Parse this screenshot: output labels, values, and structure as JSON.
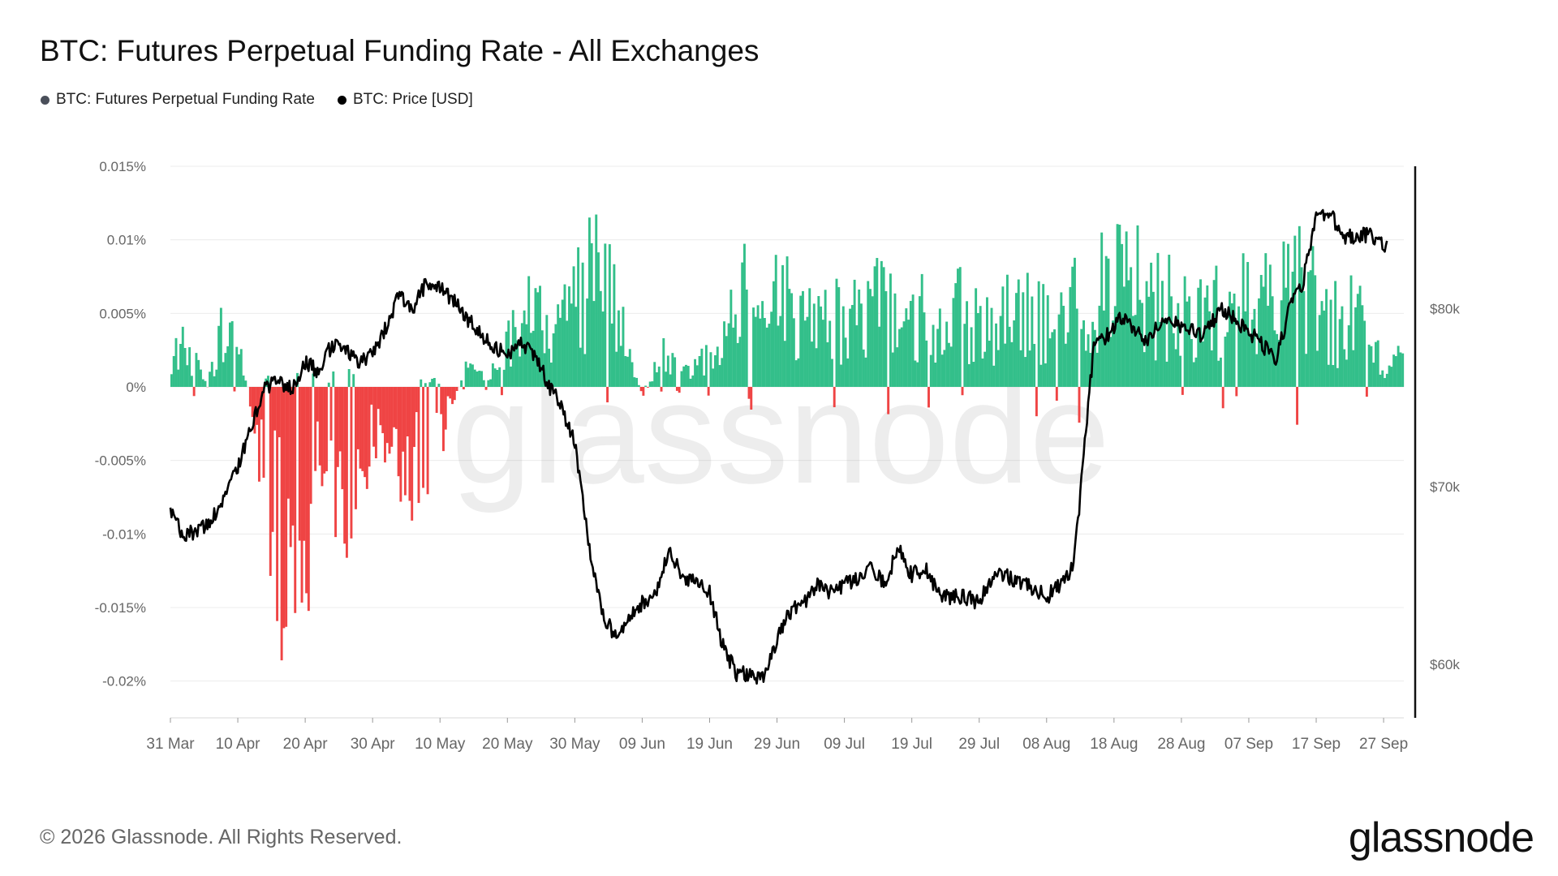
{
  "header": {
    "title": "BTC: Futures Perpetual Funding Rate - All Exchanges"
  },
  "legend": [
    {
      "label": "BTC: Futures Perpetual Funding Rate",
      "color": "#4a4f5a"
    },
    {
      "label": "BTC: Price [USD]",
      "color": "#000000"
    }
  ],
  "footer": {
    "copyright": "© 2026 Glassnode. All Rights Reserved.",
    "logo": "glassnode"
  },
  "watermark": "glassnode",
  "colors": {
    "positive": "#33bf8a",
    "negative": "#ef4444",
    "price": "#000000",
    "grid": "#ececec",
    "axis": "#111111"
  },
  "chart_data": {
    "type": "bar",
    "title": "BTC: Futures Perpetual Funding Rate - All Exchanges",
    "x_tick_labels": [
      "31 Mar",
      "10 Apr",
      "20 Apr",
      "30 Apr",
      "10 May",
      "20 May",
      "30 May",
      "09 Jun",
      "19 Jun",
      "29 Jun",
      "09 Jul",
      "19 Jul",
      "29 Jul",
      "08 Aug",
      "18 Aug",
      "28 Aug",
      "07 Sep",
      "17 Sep",
      "27 Sep"
    ],
    "x_range": [
      "31 Mar",
      "30 Sep"
    ],
    "y_left": {
      "ticks": [
        0.015,
        0.01,
        0.005,
        0,
        -0.005,
        -0.01,
        -0.015,
        -0.02
      ],
      "tick_labels": [
        "0.015%",
        "0.01%",
        "0.005%",
        "0%",
        "-0.005%",
        "-0.01%",
        "-0.015%",
        "-0.02%"
      ],
      "range": [
        -0.0225,
        0.015
      ],
      "unit": "%"
    },
    "y_right": {
      "ticks": [
        80000,
        70000,
        60000
      ],
      "tick_labels": [
        "$80k",
        "$70k",
        "$60k"
      ],
      "range": [
        57000,
        88000
      ]
    },
    "grid": true,
    "legend_position": "top-left",
    "series": [
      {
        "name": "BTC: Futures Perpetual Funding Rate",
        "type": "bar",
        "axis": "left",
        "keypoints": [
          [
            0,
            0.002
          ],
          [
            2,
            0.004
          ],
          [
            5,
            0.001
          ],
          [
            8,
            0.005
          ],
          [
            11,
            0.001
          ],
          [
            14,
            -0.008
          ],
          [
            17,
            -0.016
          ],
          [
            20,
            -0.012
          ],
          [
            23,
            -0.006
          ],
          [
            26,
            -0.009
          ],
          [
            30,
            -0.004
          ],
          [
            34,
            -0.006
          ],
          [
            37,
            -0.007
          ],
          [
            40,
            -0.004
          ],
          [
            44,
            0.002
          ],
          [
            47,
            0.0005
          ],
          [
            50,
            0.004
          ],
          [
            54,
            0.006
          ],
          [
            58,
            0.005
          ],
          [
            61,
            0.008
          ],
          [
            64,
            0.009
          ],
          [
            67,
            0.004
          ],
          [
            70,
            -0.001
          ],
          [
            73,
            0.003
          ],
          [
            76,
            0.001
          ],
          [
            79,
            0.002
          ],
          [
            82,
            0.004
          ],
          [
            85,
            0.007
          ],
          [
            88,
            0.007
          ],
          [
            92,
            0.007
          ],
          [
            95,
            0.006
          ],
          [
            98,
            0.006
          ],
          [
            102,
            0.006
          ],
          [
            106,
            0.007
          ],
          [
            109,
            0.004
          ],
          [
            112,
            0.006
          ],
          [
            115,
            0.007
          ],
          [
            118,
            0.006
          ],
          [
            122,
            0.005
          ],
          [
            126,
            0.006
          ],
          [
            130,
            0.006
          ],
          [
            134,
            0.007
          ],
          [
            137,
            0.007
          ],
          [
            140,
            0.01
          ],
          [
            143,
            0.008
          ],
          [
            146,
            0.007
          ],
          [
            150,
            0.006
          ],
          [
            153,
            0.006
          ],
          [
            157,
            0.006
          ],
          [
            160,
            0.007
          ],
          [
            163,
            0.007
          ],
          [
            167,
            0.008
          ],
          [
            170,
            0.007
          ],
          [
            173,
            0.005
          ],
          [
            176,
            0.006
          ],
          [
            178,
            0.004
          ],
          [
            180,
            0.001
          ],
          [
            182,
            0.002
          ]
        ]
      },
      {
        "name": "BTC: Price [USD]",
        "type": "line",
        "axis": "right",
        "keypoints": [
          [
            0,
            68500
          ],
          [
            2,
            67200
          ],
          [
            4,
            67500
          ],
          [
            6,
            68000
          ],
          [
            8,
            69500
          ],
          [
            10,
            71000
          ],
          [
            12,
            73500
          ],
          [
            14,
            75500
          ],
          [
            16,
            76000
          ],
          [
            18,
            75500
          ],
          [
            20,
            77000
          ],
          [
            22,
            76500
          ],
          [
            24,
            78000
          ],
          [
            26,
            77800
          ],
          [
            28,
            76800
          ],
          [
            30,
            77500
          ],
          [
            32,
            79000
          ],
          [
            34,
            80800
          ],
          [
            36,
            80000
          ],
          [
            38,
            81500
          ],
          [
            40,
            81200
          ],
          [
            42,
            80500
          ],
          [
            44,
            79500
          ],
          [
            46,
            78500
          ],
          [
            48,
            77800
          ],
          [
            50,
            77500
          ],
          [
            52,
            78000
          ],
          [
            54,
            77500
          ],
          [
            56,
            75800
          ],
          [
            58,
            74500
          ],
          [
            60,
            72500
          ],
          [
            62,
            67000
          ],
          [
            64,
            63000
          ],
          [
            66,
            61500
          ],
          [
            68,
            62500
          ],
          [
            70,
            63500
          ],
          [
            72,
            64000
          ],
          [
            74,
            66500
          ],
          [
            76,
            65000
          ],
          [
            78,
            64500
          ],
          [
            80,
            64000
          ],
          [
            82,
            61000
          ],
          [
            84,
            59500
          ],
          [
            86,
            59500
          ],
          [
            88,
            59200
          ],
          [
            90,
            61500
          ],
          [
            92,
            63000
          ],
          [
            94,
            63500
          ],
          [
            96,
            64500
          ],
          [
            98,
            64000
          ],
          [
            100,
            64500
          ],
          [
            102,
            64800
          ],
          [
            104,
            65500
          ],
          [
            106,
            64500
          ],
          [
            108,
            66500
          ],
          [
            110,
            65000
          ],
          [
            112,
            65500
          ],
          [
            114,
            64000
          ],
          [
            116,
            63800
          ],
          [
            118,
            63800
          ],
          [
            120,
            63500
          ],
          [
            122,
            65000
          ],
          [
            124,
            65000
          ],
          [
            126,
            64500
          ],
          [
            128,
            64300
          ],
          [
            130,
            63800
          ],
          [
            132,
            64500
          ],
          [
            134,
            65500
          ],
          [
            135,
            69500
          ],
          [
            137,
            78000
          ],
          [
            139,
            78500
          ],
          [
            141,
            79500
          ],
          [
            143,
            79000
          ],
          [
            145,
            78000
          ],
          [
            147,
            79500
          ],
          [
            150,
            79000
          ],
          [
            153,
            78500
          ],
          [
            156,
            80000
          ],
          [
            159,
            79000
          ],
          [
            162,
            78000
          ],
          [
            164,
            77000
          ],
          [
            166,
            80000
          ],
          [
            168,
            81500
          ],
          [
            170,
            85000
          ],
          [
            172,
            85500
          ],
          [
            174,
            84000
          ],
          [
            176,
            84000
          ],
          [
            178,
            84200
          ],
          [
            180,
            83500
          ]
        ]
      }
    ]
  }
}
